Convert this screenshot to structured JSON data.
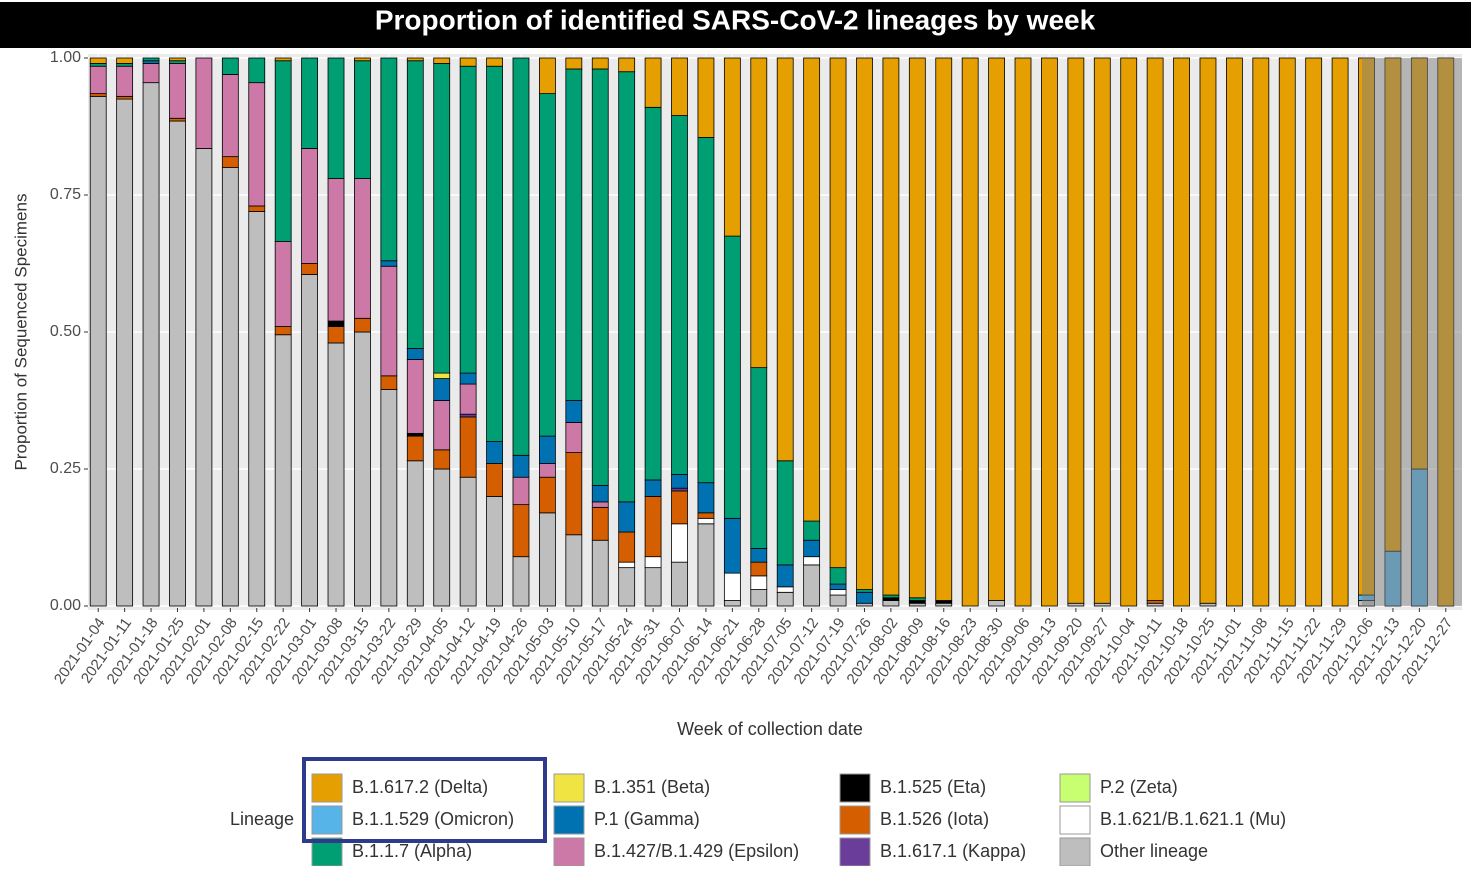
{
  "chart_data": {
    "type": "stacked_bar",
    "title": "Proportion of identified SARS-CoV-2 lineages by week",
    "x_label": "Week of collection date",
    "y_label": "Proportion of Sequenced Specimens",
    "legend_title": "Lineage",
    "ylim": [
      0,
      1
    ],
    "yticks": [
      {
        "value": 0,
        "label": "0.00"
      },
      {
        "value": 0.25,
        "label": "0.25"
      },
      {
        "value": 0.5,
        "label": "0.50"
      },
      {
        "value": 0.75,
        "label": "0.75"
      },
      {
        "value": 1,
        "label": "1.00"
      }
    ],
    "grid": true,
    "categories": [
      "2021-01-04",
      "2021-01-11",
      "2021-01-18",
      "2021-01-25",
      "2021-02-01",
      "2021-02-08",
      "2021-02-15",
      "2021-02-22",
      "2021-03-01",
      "2021-03-08",
      "2021-03-15",
      "2021-03-22",
      "2021-03-29",
      "2021-04-05",
      "2021-04-12",
      "2021-04-19",
      "2021-04-26",
      "2021-05-03",
      "2021-05-10",
      "2021-05-17",
      "2021-05-24",
      "2021-05-31",
      "2021-06-07",
      "2021-06-14",
      "2021-06-21",
      "2021-06-28",
      "2021-07-05",
      "2021-07-12",
      "2021-07-19",
      "2021-07-26",
      "2021-08-02",
      "2021-08-09",
      "2021-08-16",
      "2021-08-23",
      "2021-08-30",
      "2021-09-06",
      "2021-09-13",
      "2021-09-20",
      "2021-09-27",
      "2021-10-04",
      "2021-10-11",
      "2021-10-18",
      "2021-10-25",
      "2021-11-01",
      "2021-11-08",
      "2021-11-15",
      "2021-11-22",
      "2021-11-29",
      "2021-12-06",
      "2021-12-13",
      "2021-12-20",
      "2021-12-27"
    ],
    "series": [
      {
        "name": "B.1.617.2 (Delta)",
        "color": "#E69F00",
        "values": [
          0.01,
          0.01,
          0,
          0.005,
          0,
          0,
          0,
          0.005,
          0,
          0,
          0.005,
          0,
          0.005,
          0.01,
          0.015,
          0.015,
          0,
          0.065,
          0.02,
          0.02,
          0.025,
          0.09,
          0.105,
          0.145,
          0.325,
          0.565,
          0.735,
          0.845,
          0.93,
          0.97,
          0.98,
          0.985,
          0.99,
          1,
          0.99,
          1,
          1,
          0.995,
          0.995,
          1,
          0.99,
          1,
          0.995,
          1,
          1,
          1,
          1,
          1,
          0.98,
          0.9,
          0.75,
          1
        ]
      },
      {
        "name": "B.1.1.529 (Omicron)",
        "color": "#56B4E9",
        "values": [
          0,
          0,
          0,
          0,
          0,
          0,
          0,
          0,
          0,
          0,
          0,
          0,
          0,
          0,
          0,
          0,
          0,
          0,
          0,
          0,
          0,
          0,
          0,
          0,
          0,
          0,
          0,
          0,
          0,
          0,
          0,
          0,
          0,
          0,
          0,
          0,
          0,
          0,
          0,
          0,
          0,
          0,
          0,
          0,
          0,
          0,
          0,
          0,
          0.01,
          0.1,
          0.25,
          0
        ]
      },
      {
        "name": "B.1.1.7 (Alpha)",
        "color": "#009E73",
        "values": [
          0.005,
          0.005,
          0.005,
          0.005,
          0,
          0.03,
          0.045,
          0.33,
          0.165,
          0.22,
          0.215,
          0.37,
          0.525,
          0.565,
          0.56,
          0.685,
          0.725,
          0.625,
          0.605,
          0.76,
          0.785,
          0.68,
          0.655,
          0.63,
          0.515,
          0.33,
          0.19,
          0.035,
          0.03,
          0.005,
          0.005,
          0.005,
          0,
          0,
          0,
          0,
          0,
          0,
          0,
          0,
          0,
          0,
          0,
          0,
          0,
          0,
          0,
          0,
          0,
          0,
          0,
          0
        ]
      },
      {
        "name": "B.1.351 (Beta)",
        "color": "#F0E442",
        "values": [
          0,
          0,
          0,
          0,
          0,
          0,
          0,
          0,
          0,
          0,
          0,
          0,
          0,
          0.01,
          0,
          0,
          0,
          0,
          0,
          0,
          0,
          0,
          0,
          0,
          0,
          0,
          0,
          0,
          0,
          0,
          0,
          0,
          0,
          0,
          0,
          0,
          0,
          0,
          0,
          0,
          0,
          0,
          0,
          0,
          0,
          0,
          0,
          0,
          0,
          0,
          0,
          0
        ]
      },
      {
        "name": "P.1 (Gamma)",
        "color": "#0072B2",
        "values": [
          0,
          0,
          0.005,
          0,
          0,
          0,
          0,
          0,
          0,
          0,
          0,
          0.01,
          0.02,
          0.04,
          0.02,
          0.04,
          0.04,
          0.05,
          0.04,
          0.03,
          0.055,
          0.03,
          0.025,
          0.055,
          0.1,
          0.025,
          0.04,
          0.03,
          0.01,
          0.02,
          0,
          0,
          0,
          0,
          0,
          0,
          0,
          0,
          0,
          0,
          0,
          0,
          0,
          0,
          0,
          0,
          0,
          0,
          0,
          0,
          0,
          0
        ]
      },
      {
        "name": "B.1.427/B.1.429 (Epsilon)",
        "color": "#CC79A7",
        "values": [
          0.05,
          0.055,
          0.035,
          0.1,
          0.165,
          0.15,
          0.225,
          0.155,
          0.21,
          0.26,
          0.255,
          0.2,
          0.135,
          0.09,
          0.055,
          0,
          0.05,
          0.025,
          0.055,
          0.01,
          0,
          0,
          0,
          0,
          0,
          0,
          0,
          0,
          0,
          0,
          0,
          0,
          0,
          0,
          0,
          0,
          0,
          0,
          0,
          0,
          0,
          0,
          0,
          0,
          0,
          0,
          0,
          0,
          0,
          0,
          0,
          0
        ]
      },
      {
        "name": "B.1.525 (Eta)",
        "color": "#000000",
        "values": [
          0,
          0,
          0,
          0,
          0,
          0,
          0,
          0,
          0,
          0.01,
          0,
          0,
          0.005,
          0,
          0,
          0,
          0,
          0,
          0,
          0,
          0,
          0,
          0,
          0,
          0,
          0,
          0,
          0,
          0,
          0,
          0.005,
          0.005,
          0.005,
          0,
          0,
          0,
          0,
          0,
          0,
          0,
          0,
          0,
          0,
          0,
          0,
          0,
          0,
          0,
          0,
          0,
          0,
          0
        ]
      },
      {
        "name": "B.1.526 (Iota)",
        "color": "#D55E00",
        "values": [
          0.005,
          0.005,
          0,
          0.005,
          0,
          0.02,
          0.01,
          0.015,
          0.02,
          0.03,
          0.025,
          0.025,
          0.045,
          0.035,
          0.11,
          0.06,
          0.095,
          0.065,
          0.15,
          0.06,
          0.055,
          0.11,
          0.06,
          0.01,
          0,
          0.025,
          0,
          0,
          0,
          0,
          0,
          0,
          0,
          0,
          0,
          0,
          0,
          0,
          0,
          0,
          0.005,
          0,
          0,
          0,
          0,
          0,
          0,
          0,
          0,
          0,
          0,
          0
        ]
      },
      {
        "name": "B.1.617.1 (Kappa)",
        "color": "#6A3D9A",
        "values": [
          0,
          0,
          0,
          0,
          0,
          0,
          0,
          0,
          0,
          0,
          0,
          0,
          0,
          0,
          0.005,
          0,
          0,
          0,
          0,
          0,
          0,
          0,
          0.005,
          0,
          0,
          0,
          0,
          0,
          0,
          0,
          0,
          0,
          0,
          0,
          0,
          0,
          0,
          0,
          0,
          0,
          0,
          0,
          0,
          0,
          0,
          0,
          0,
          0,
          0,
          0,
          0,
          0
        ]
      },
      {
        "name": "P.2 (Zeta)",
        "color": "#C8FF70",
        "values": [
          0,
          0,
          0,
          0,
          0,
          0,
          0,
          0,
          0,
          0,
          0,
          0,
          0,
          0,
          0,
          0,
          0,
          0,
          0,
          0,
          0,
          0,
          0,
          0,
          0,
          0,
          0,
          0,
          0,
          0,
          0,
          0,
          0,
          0,
          0,
          0,
          0,
          0,
          0,
          0,
          0,
          0,
          0,
          0,
          0,
          0,
          0,
          0,
          0,
          0,
          0,
          0
        ]
      },
      {
        "name": "B.1.621/B.1.621.1 (Mu)",
        "color": "#FFFFFF",
        "values": [
          0,
          0,
          0,
          0,
          0,
          0,
          0,
          0,
          0,
          0,
          0,
          0,
          0,
          0,
          0,
          0,
          0,
          0,
          0,
          0,
          0.01,
          0.02,
          0.07,
          0.01,
          0.05,
          0.025,
          0.01,
          0.015,
          0.01,
          0,
          0,
          0,
          0,
          0,
          0,
          0,
          0,
          0,
          0,
          0,
          0,
          0,
          0,
          0,
          0,
          0,
          0,
          0,
          0,
          0,
          0,
          0
        ]
      },
      {
        "name": "Other lineage",
        "color": "#BEBEBE",
        "values": [
          0.93,
          0.925,
          0.955,
          0.885,
          0.835,
          0.8,
          0.72,
          0.495,
          0.605,
          0.48,
          0.5,
          0.395,
          0.265,
          0.25,
          0.235,
          0.2,
          0.09,
          0.17,
          0.13,
          0.12,
          0.07,
          0.07,
          0.08,
          0.15,
          0.01,
          0.03,
          0.025,
          0.075,
          0.02,
          0.005,
          0.01,
          0.005,
          0.005,
          0,
          0.01,
          0,
          0,
          0.005,
          0.005,
          0,
          0.005,
          0,
          0.005,
          0,
          0,
          0,
          0,
          0,
          0.01,
          0,
          0,
          0
        ]
      }
    ]
  }
}
